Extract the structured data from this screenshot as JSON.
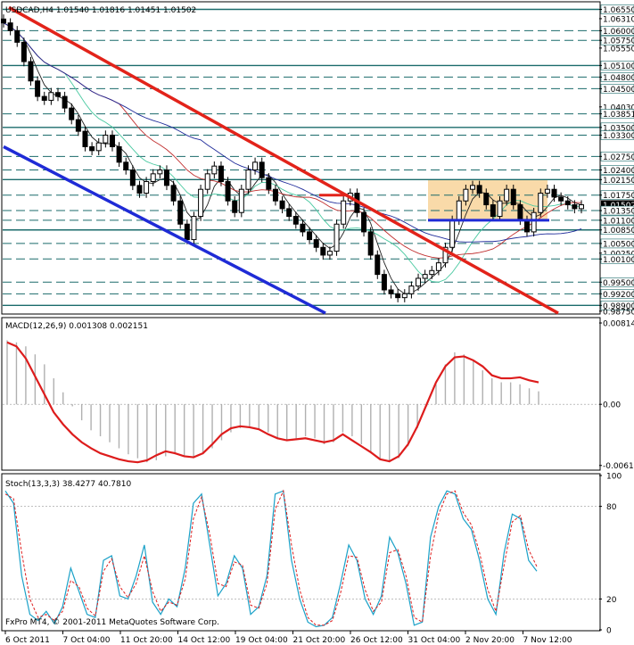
{
  "chart_data": [
    {
      "type": "line",
      "panel": "price",
      "header": "USDCAD,H4  1.01540 1.01816 1.01451 1.01502",
      "ylim": [
        0.987,
        1.067
      ],
      "price_levels": [
        {
          "label": "1.06550",
          "value": 1.0655,
          "style": "solid-teal"
        },
        {
          "label": "1.06310",
          "value": 1.0631,
          "style": "tick"
        },
        {
          "label": "1.06000",
          "value": 1.06,
          "style": "dashed"
        },
        {
          "label": "1.05750",
          "value": 1.0575,
          "style": "dashed"
        },
        {
          "label": "1.05550",
          "value": 1.0555,
          "style": "tick"
        },
        {
          "label": "1.05100",
          "value": 1.051,
          "style": "solid-teal"
        },
        {
          "label": "1.04800",
          "value": 1.048,
          "style": "dashed"
        },
        {
          "label": "1.04500",
          "value": 1.045,
          "style": "dashed"
        },
        {
          "label": "1.04030",
          "value": 1.0403,
          "style": "tick"
        },
        {
          "label": "1.03851",
          "value": 1.03851,
          "style": "dashed"
        },
        {
          "label": "1.03500",
          "value": 1.035,
          "style": "solid-teal"
        },
        {
          "label": "1.03300",
          "value": 1.033,
          "style": "dashed"
        },
        {
          "label": "1.02750",
          "value": 1.0275,
          "style": "dashed"
        },
        {
          "label": "1.02400",
          "value": 1.024,
          "style": "dashed"
        },
        {
          "label": "1.02150",
          "value": 1.0215,
          "style": "solid-teal"
        },
        {
          "label": "1.01750",
          "value": 1.0175,
          "style": "dashed"
        },
        {
          "label": "1.01502",
          "value": 1.01502,
          "style": "current"
        },
        {
          "label": "1.01350",
          "value": 1.0135,
          "style": "dashed"
        },
        {
          "label": "1.01100",
          "value": 1.011,
          "style": "dashed"
        },
        {
          "label": "1.00850",
          "value": 1.0085,
          "style": "solid-teal"
        },
        {
          "label": "1.00500",
          "value": 1.005,
          "style": "dashed"
        },
        {
          "label": "1.00250",
          "value": 1.0025,
          "style": "tick"
        },
        {
          "label": "1.00100",
          "value": 1.001,
          "style": "dashed"
        },
        {
          "label": "0.99500",
          "value": 0.995,
          "style": "dashed"
        },
        {
          "label": "0.99200",
          "value": 0.992,
          "style": "dashed"
        },
        {
          "label": "0.98900",
          "value": 0.989,
          "style": "solid-teal"
        },
        {
          "label": "0.98750",
          "value": 0.9875,
          "style": "tick"
        }
      ],
      "x_tick_labels": [
        "6 Oct 2011",
        "7 Oct 04:00",
        "11 Oct 20:00",
        "14 Oct 12:00",
        "19 Oct 04:00",
        "21 Oct 20:00",
        "26 Oct 12:00",
        "31 Oct 04:00",
        "2 Nov 20:00",
        "7 Nov 12:00"
      ],
      "close_path": [
        1.062,
        1.06,
        1.057,
        1.052,
        1.047,
        1.043,
        1.042,
        1.044,
        1.043,
        1.04,
        1.037,
        1.034,
        1.03,
        1.029,
        1.031,
        1.033,
        1.03,
        1.026,
        1.024,
        1.02,
        1.018,
        1.021,
        1.023,
        1.024,
        1.02,
        1.016,
        1.01,
        1.006,
        1.012,
        1.019,
        1.023,
        1.025,
        1.021,
        1.016,
        1.013,
        1.019,
        1.024,
        1.026,
        1.022,
        1.019,
        1.016,
        1.014,
        1.012,
        1.01,
        1.008,
        1.006,
        1.004,
        1.002,
        1.003,
        1.01,
        1.016,
        1.018,
        1.013,
        1.008,
        1.002,
        0.997,
        0.993,
        0.992,
        0.991,
        0.992,
        0.994,
        0.996,
        0.997,
        0.998,
        1.0,
        1.004,
        1.011,
        1.016,
        1.019,
        1.02,
        1.018,
        1.015,
        1.012,
        1.016,
        1.019,
        1.015,
        1.011,
        1.008,
        1.013,
        1.018,
        1.019,
        1.017,
        1.016,
        1.015,
        1.014,
        1.015
      ]
    },
    {
      "type": "line",
      "panel": "macd",
      "header": "MACD(12,26,9) 0.001308 0.002151",
      "ylim": [
        -0.0065,
        0.0085
      ],
      "tick_labels": [
        {
          "label": "0.00814",
          "value": 0.00814
        },
        {
          "label": "0.00",
          "value": 0.0
        },
        {
          "label": "-0.00612",
          "value": -0.00612
        }
      ],
      "signal": [
        0.0062,
        0.0058,
        0.0046,
        0.0028,
        0.001,
        -0.0008,
        -0.002,
        -0.003,
        -0.0038,
        -0.0044,
        -0.0049,
        -0.0052,
        -0.0055,
        -0.0057,
        -0.0058,
        -0.0056,
        -0.0051,
        -0.0047,
        -0.0049,
        -0.0052,
        -0.0053,
        -0.0049,
        -0.004,
        -0.003,
        -0.0024,
        -0.0022,
        -0.0023,
        -0.0025,
        -0.003,
        -0.0034,
        -0.0036,
        -0.0035,
        -0.0034,
        -0.0036,
        -0.0038,
        -0.0036,
        -0.003,
        -0.0036,
        -0.0042,
        -0.0048,
        -0.0055,
        -0.0057,
        -0.0052,
        -0.004,
        -0.0022,
        0.0,
        0.0022,
        0.0038,
        0.0047,
        0.0048,
        0.0044,
        0.0038,
        0.0029,
        0.0026,
        0.0026,
        0.0027,
        0.0024,
        0.0022
      ],
      "histogram": [
        0.0064,
        0.0062,
        0.0058,
        0.005,
        0.004,
        0.0026,
        0.0012,
        -0.0002,
        -0.0016,
        -0.0026,
        -0.0032,
        -0.0038,
        -0.0044,
        -0.005,
        -0.0054,
        -0.0058,
        -0.0056,
        -0.0052,
        -0.005,
        -0.0052,
        -0.0054,
        -0.005,
        -0.0044,
        -0.0036,
        -0.0028,
        -0.0024,
        -0.0022,
        -0.0024,
        -0.0028,
        -0.0034,
        -0.0036,
        -0.0034,
        -0.0032,
        -0.0034,
        -0.004,
        -0.0038,
        -0.0028,
        -0.0032,
        -0.004,
        -0.0048,
        -0.0054,
        -0.0058,
        -0.0054,
        -0.0042,
        -0.0024,
        -0.0002,
        0.002,
        0.004,
        0.0052,
        0.005,
        0.0044,
        0.0034,
        0.0026,
        0.0022,
        0.0022,
        0.002,
        0.0016,
        0.0013
      ]
    },
    {
      "type": "line",
      "panel": "stochastic",
      "header": "Stoch(13,3,3) 38.4277 40.7810",
      "ylim": [
        0,
        100
      ],
      "tick_labels": [
        {
          "label": "100",
          "value": 100
        },
        {
          "label": "80",
          "value": 80
        },
        {
          "label": "20",
          "value": 20
        },
        {
          "label": "0",
          "value": 0
        }
      ],
      "main": [
        90,
        82,
        35,
        10,
        6,
        12,
        4,
        15,
        40,
        25,
        10,
        8,
        45,
        48,
        22,
        20,
        35,
        55,
        18,
        10,
        20,
        15,
        40,
        82,
        88,
        55,
        22,
        30,
        48,
        40,
        10,
        15,
        35,
        88,
        90,
        45,
        20,
        5,
        2,
        3,
        8,
        30,
        55,
        45,
        20,
        10,
        22,
        60,
        50,
        30,
        3,
        5,
        60,
        80,
        90,
        88,
        72,
        65,
        45,
        20,
        10,
        50,
        75,
        72,
        45,
        38
      ],
      "signal": [
        88,
        85,
        50,
        20,
        8,
        10,
        6,
        12,
        32,
        28,
        14,
        9,
        38,
        46,
        28,
        21,
        30,
        48,
        25,
        12,
        18,
        16,
        33,
        72,
        86,
        62,
        30,
        28,
        44,
        42,
        16,
        14,
        30,
        78,
        90,
        55,
        26,
        8,
        3,
        3,
        6,
        24,
        48,
        47,
        26,
        12,
        18,
        50,
        52,
        35,
        8,
        5,
        48,
        75,
        88,
        90,
        76,
        68,
        50,
        26,
        12,
        42,
        70,
        74,
        52,
        41
      ]
    }
  ],
  "footer": "FxPro MT4, © 2001-2011 MetaQuotes Software Corp.",
  "colors": {
    "trendline_red": "#e2231a",
    "trendline_blue": "#1f2bd6",
    "level_teal": "#1b6b6b",
    "macd_signal": "#dd1c1c",
    "stoch_main": "#1aa1c8",
    "stoch_signal": "#dd1c1c",
    "box_fill": "#f8d6a0"
  }
}
